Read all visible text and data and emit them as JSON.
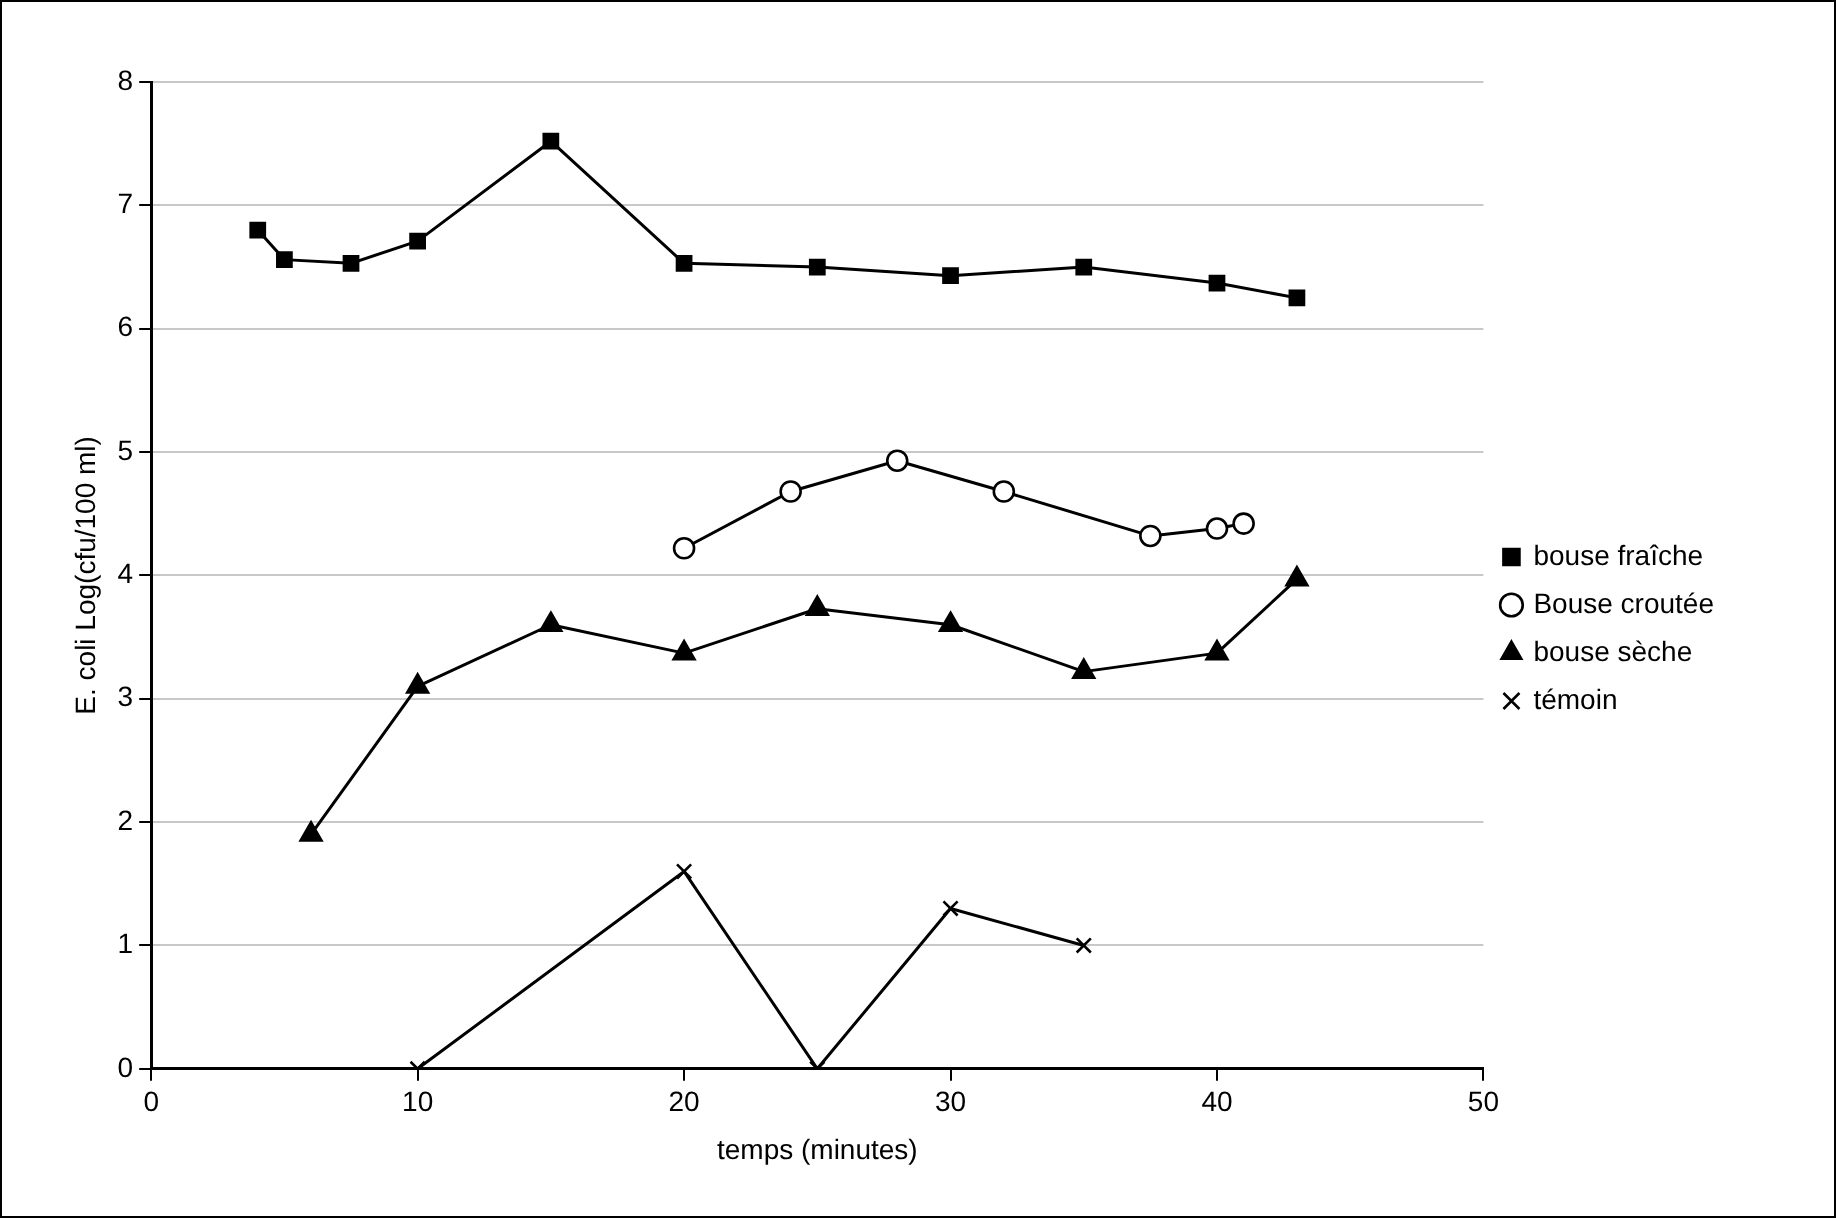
{
  "chart_data": {
    "type": "line",
    "xlabel": "temps (minutes)",
    "ylabel": "E. coli Log(cfu/100 ml)",
    "xlim": [
      0,
      50
    ],
    "xticks": [
      0,
      10,
      20,
      30,
      40,
      50
    ],
    "ylim": [
      0,
      8
    ],
    "yticks": [
      0,
      1,
      2,
      3,
      4,
      5,
      6,
      7,
      8
    ],
    "grid": "y",
    "legend": "right",
    "line_style": "solid",
    "series": [
      {
        "name": "bouse fraîche",
        "color": "#000000",
        "marker": "square",
        "x": [
          4,
          5,
          7.5,
          10,
          15,
          20,
          25,
          30,
          35,
          40,
          43
        ],
        "values": [
          6.8,
          6.56,
          6.53,
          6.71,
          7.52,
          6.53,
          6.5,
          6.43,
          6.5,
          6.37,
          6.25
        ]
      },
      {
        "name": "Bouse croutée",
        "color": "#000000",
        "marker": "circle",
        "x": [
          20,
          24,
          28,
          32,
          37.5,
          40,
          41
        ],
        "values": [
          4.22,
          4.68,
          4.93,
          4.68,
          4.32,
          4.38,
          4.42
        ]
      },
      {
        "name": "bouse sèche",
        "color": "#000000",
        "marker": "triangle",
        "x": [
          6,
          10,
          15,
          20,
          25,
          30,
          35,
          40,
          43
        ],
        "values": [
          1.9,
          3.1,
          3.6,
          3.37,
          3.73,
          3.6,
          3.22,
          3.37,
          3.97
        ]
      },
      {
        "name": "témoin",
        "color": "#000000",
        "marker": "cross",
        "x": [
          10,
          20,
          25,
          30,
          35
        ],
        "values": [
          0,
          1.6,
          0,
          1.3,
          1.0
        ]
      }
    ]
  }
}
